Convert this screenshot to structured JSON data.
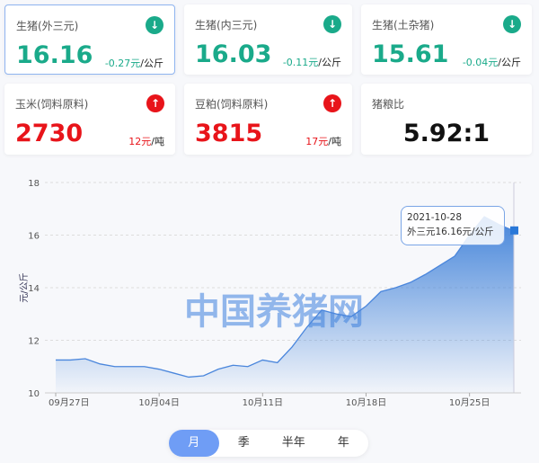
{
  "cards": [
    {
      "title": "生猪(外三元)",
      "value": "16.16",
      "change": "-0.27元",
      "unit": "/公斤",
      "trend": "down",
      "icon": "arrow-down-icon"
    },
    {
      "title": "生猪(内三元)",
      "value": "16.03",
      "change": "-0.11元",
      "unit": "/公斤",
      "trend": "down",
      "icon": "arrow-down-icon"
    },
    {
      "title": "生猪(土杂猪)",
      "value": "15.61",
      "change": "-0.04元",
      "unit": "/公斤",
      "trend": "down",
      "icon": "arrow-down-icon"
    },
    {
      "title": "玉米(饲料原料)",
      "value": "2730",
      "change": "12元",
      "unit": "/吨",
      "trend": "up",
      "icon": "arrow-up-icon"
    },
    {
      "title": "豆粕(饲料原料)",
      "value": "3815",
      "change": "17元",
      "unit": "/吨",
      "trend": "up",
      "icon": "arrow-up-icon"
    },
    {
      "title": "猪粮比",
      "value": "5.92:1"
    }
  ],
  "colors": {
    "down": "#1aaa8a",
    "up": "#e8141a",
    "line": "#4a86dc"
  },
  "chart_data": {
    "type": "area",
    "ylabel": "元/公斤",
    "ylim": [
      10,
      18
    ],
    "yticks": [
      "10",
      "12",
      "14",
      "16",
      "18"
    ],
    "xtick_labels": [
      "09月27日",
      "10月04日",
      "10月11日",
      "10月18日",
      "10月25日"
    ],
    "xtick_days": [
      0,
      7,
      14,
      21,
      28
    ],
    "grid": true,
    "watermark": "中国养猪网",
    "x_start": "2021-09-27",
    "x_end": "2021-10-28",
    "values": [
      11.25,
      11.25,
      11.3,
      11.1,
      11.0,
      11.0,
      11.0,
      10.9,
      10.75,
      10.6,
      10.65,
      10.9,
      11.05,
      11.0,
      11.25,
      11.15,
      11.75,
      12.5,
      13.15,
      13.0,
      12.9,
      13.3,
      13.85,
      14.0,
      14.2,
      14.5,
      14.85,
      15.2,
      16.0,
      16.7,
      16.4,
      16.16
    ],
    "tooltip": {
      "date": "2021-10-28",
      "text": "外三元16.16元/公斤"
    }
  },
  "range_buttons": [
    "月",
    "季",
    "半年",
    "年"
  ],
  "active_range": "月"
}
